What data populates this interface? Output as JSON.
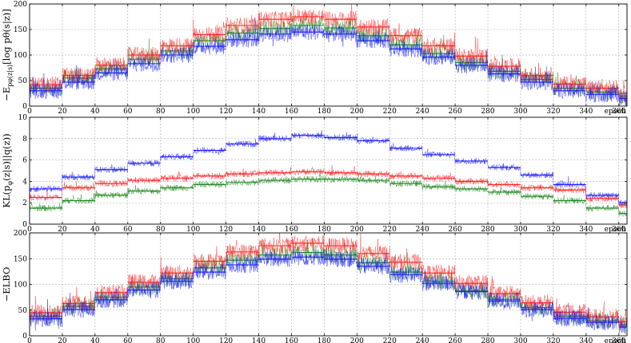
{
  "colors": {
    "green": "#1f8a1f",
    "red": "#ff2020",
    "blue": "#1b1bff"
  },
  "x_unit_label": "epoch",
  "chart_data": [
    {
      "type": "line",
      "title": "",
      "ylabel": "−E_{pφ(z|s)}[log pθ(s|z)]",
      "ylabel_main": "−E",
      "ylabel_sub": "pφ(z|s)",
      "ylabel_rest": "[log pθ(s|z)]",
      "xlim": [
        0,
        365
      ],
      "ylim": [
        0,
        200
      ],
      "xticks": [
        0,
        20,
        40,
        60,
        80,
        100,
        120,
        140,
        160,
        180,
        200,
        220,
        240,
        260,
        280,
        300,
        320,
        340,
        360
      ],
      "yticks": [
        0,
        50,
        100,
        150,
        200
      ],
      "segment_width": 20,
      "noise": 16,
      "series": [
        {
          "color": "green",
          "levels": [
            35,
            55,
            73,
            92,
            108,
            128,
            143,
            152,
            158,
            153,
            138,
            120,
            103,
            85,
            68,
            52,
            35,
            27,
            20
          ]
        },
        {
          "color": "red",
          "levels": [
            42,
            60,
            80,
            100,
            118,
            140,
            158,
            170,
            175,
            170,
            155,
            138,
            118,
            98,
            78,
            60,
            43,
            35,
            25
          ]
        },
        {
          "color": "blue",
          "levels": [
            30,
            47,
            65,
            83,
            100,
            117,
            130,
            141,
            145,
            141,
            128,
            112,
            96,
            80,
            63,
            47,
            30,
            23,
            15
          ]
        }
      ]
    },
    {
      "type": "line",
      "title": "",
      "ylabel": "KL(pφ(z|s)||q(z))",
      "ylabel_main": "KL(p",
      "ylabel_sub": "φ",
      "ylabel_rest": "(z|s)||q(z))",
      "xlim": [
        0,
        365
      ],
      "ylim": [
        0,
        10
      ],
      "xticks": [
        0,
        20,
        40,
        60,
        80,
        100,
        120,
        140,
        160,
        180,
        200,
        220,
        240,
        260,
        280,
        300,
        320,
        340,
        360
      ],
      "yticks": [
        0,
        2,
        4,
        6,
        8,
        10
      ],
      "segment_width": 20,
      "noise": 0.3,
      "series": [
        {
          "color": "green",
          "levels": [
            1.5,
            2.2,
            2.7,
            3.1,
            3.4,
            3.7,
            3.9,
            4.1,
            4.2,
            4.2,
            4.1,
            3.8,
            3.5,
            3.3,
            3.0,
            2.6,
            2.2,
            1.5,
            1.0
          ]
        },
        {
          "color": "red",
          "levels": [
            2.5,
            3.4,
            3.8,
            4.1,
            4.3,
            4.5,
            4.7,
            4.8,
            4.9,
            4.8,
            4.7,
            4.5,
            4.3,
            4.0,
            3.7,
            3.4,
            3.2,
            2.4,
            1.8
          ]
        },
        {
          "color": "blue",
          "levels": [
            3.3,
            4.4,
            5.1,
            5.7,
            6.3,
            6.9,
            7.5,
            8.0,
            8.3,
            8.1,
            7.8,
            7.1,
            6.5,
            5.9,
            5.3,
            4.6,
            3.7,
            2.7,
            2.0
          ]
        }
      ]
    },
    {
      "type": "line",
      "title": "",
      "ylabel": "−ELBO",
      "ylabel_main": "−ELBO",
      "ylabel_sub": "",
      "ylabel_rest": "",
      "xlim": [
        0,
        365
      ],
      "ylim": [
        0,
        200
      ],
      "xticks": [
        0,
        20,
        40,
        60,
        80,
        100,
        120,
        140,
        160,
        180,
        200,
        220,
        240,
        260,
        280,
        300,
        320,
        340,
        360
      ],
      "yticks": [
        0,
        50,
        100,
        150,
        200
      ],
      "segment_width": 20,
      "noise": 16,
      "series": [
        {
          "color": "green",
          "levels": [
            38,
            57,
            75,
            95,
            111,
            132,
            147,
            157,
            162,
            157,
            142,
            124,
            106,
            88,
            71,
            55,
            38,
            29,
            21
          ]
        },
        {
          "color": "red",
          "levels": [
            45,
            63,
            84,
            104,
            122,
            145,
            163,
            175,
            180,
            175,
            160,
            143,
            122,
            102,
            82,
            64,
            46,
            37,
            27
          ]
        },
        {
          "color": "blue",
          "levels": [
            33,
            51,
            70,
            89,
            106,
            124,
            138,
            149,
            153,
            149,
            135,
            119,
            102,
            86,
            68,
            51,
            34,
            26,
            17
          ]
        }
      ]
    }
  ]
}
